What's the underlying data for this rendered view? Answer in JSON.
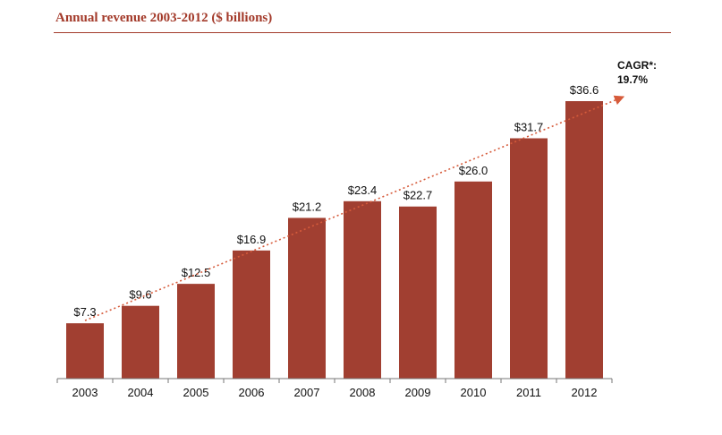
{
  "chart_data": {
    "type": "bar",
    "title": "Annual revenue 2003-2012 ($ billions)",
    "categories": [
      "2003",
      "2004",
      "2005",
      "2006",
      "2007",
      "2008",
      "2009",
      "2010",
      "2011",
      "2012"
    ],
    "values": [
      7.3,
      9.6,
      12.5,
      16.9,
      21.2,
      23.4,
      22.7,
      26.0,
      31.7,
      36.6
    ],
    "data_labels": [
      "$7.3",
      "$9.6",
      "$12.5",
      "$16.9",
      "$21.2",
      "$23.4",
      "$22.7",
      "$26.0",
      "$31.7",
      "$36.6"
    ],
    "xlabel": "",
    "ylabel": "",
    "ylim": [
      0,
      36.6
    ],
    "grid": false,
    "bar_color": "#a13f31",
    "annotation": {
      "line1": "CAGR*:",
      "line2": "19.7%",
      "trend_color": "#d65b3b"
    }
  }
}
